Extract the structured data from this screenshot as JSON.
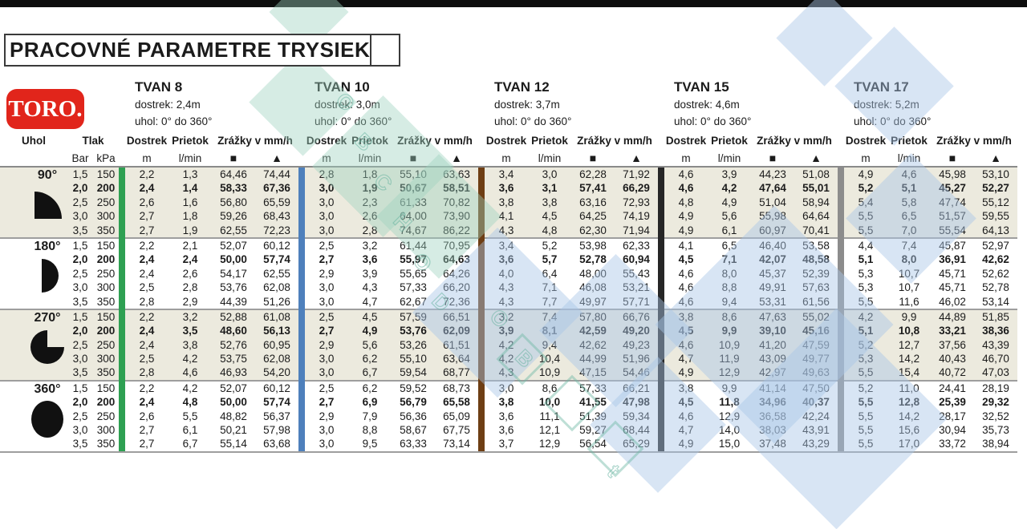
{
  "title": "PRACOVNÉ PARAMETRE TRYSIEK",
  "logo_text": "TORO.",
  "columns": {
    "uhol": "Uhol",
    "tlak": "Tlak",
    "bar": "Bar",
    "kpa": "kPa",
    "dostrek": "Dostrek",
    "prietok": "Prietok",
    "zrazky": "Zrážky v mm/h",
    "m": "m",
    "lmin": "l/min",
    "square_symbol": "■",
    "triangle_symbol": "▲"
  },
  "nozzles": [
    {
      "name": "TVAN 8",
      "dostrek": "dostrek: 2,4m",
      "uhol": "uhol: 0° do 360°",
      "color": "#2ea052"
    },
    {
      "name": "TVAN 10",
      "dostrek": "dostrek: 3,0m",
      "uhol": "uhol: 0° do 360°",
      "color": "#4e80bc"
    },
    {
      "name": "TVAN 12",
      "dostrek": "dostrek: 3,7m",
      "uhol": "uhol: 0° do 360°",
      "color": "#6e3e14"
    },
    {
      "name": "TVAN 15",
      "dostrek": "dostrek: 4,6m",
      "uhol": "uhol: 0° do 360°",
      "color": "#262626"
    },
    {
      "name": "TVAN 17",
      "dostrek": "dostrek: 5,2m",
      "uhol": "uhol: 0° do 360°",
      "color": "#8c8c8c"
    }
  ],
  "groups": [
    {
      "angle": "90°",
      "icon": "quarter-pie",
      "rows": [
        {
          "bar": "1,5",
          "kpa": "150",
          "bold": false,
          "cells": [
            [
              "2,2",
              "1,3",
              "64,46",
              "74,44"
            ],
            [
              "2,8",
              "1,8",
              "55,10",
              "63,63"
            ],
            [
              "3,4",
              "3,0",
              "62,28",
              "71,92"
            ],
            [
              "4,6",
              "3,9",
              "44,23",
              "51,08"
            ],
            [
              "4,9",
              "4,6",
              "45,98",
              "53,10"
            ]
          ]
        },
        {
          "bar": "2,0",
          "kpa": "200",
          "bold": true,
          "cells": [
            [
              "2,4",
              "1,4",
              "58,33",
              "67,36"
            ],
            [
              "3,0",
              "1,9",
              "50,67",
              "58,51"
            ],
            [
              "3,6",
              "3,1",
              "57,41",
              "66,29"
            ],
            [
              "4,6",
              "4,2",
              "47,64",
              "55,01"
            ],
            [
              "5,2",
              "5,1",
              "45,27",
              "52,27"
            ]
          ]
        },
        {
          "bar": "2,5",
          "kpa": "250",
          "bold": false,
          "cells": [
            [
              "2,6",
              "1,6",
              "56,80",
              "65,59"
            ],
            [
              "3,0",
              "2,3",
              "61,33",
              "70,82"
            ],
            [
              "3,8",
              "3,8",
              "63,16",
              "72,93"
            ],
            [
              "4,8",
              "4,9",
              "51,04",
              "58,94"
            ],
            [
              "5,4",
              "5,8",
              "47,74",
              "55,12"
            ]
          ]
        },
        {
          "bar": "3,0",
          "kpa": "300",
          "bold": false,
          "cells": [
            [
              "2,7",
              "1,8",
              "59,26",
              "68,43"
            ],
            [
              "3,0",
              "2,6",
              "64,00",
              "73,90"
            ],
            [
              "4,1",
              "4,5",
              "64,25",
              "74,19"
            ],
            [
              "4,9",
              "5,6",
              "55,98",
              "64,64"
            ],
            [
              "5,5",
              "6,5",
              "51,57",
              "59,55"
            ]
          ]
        },
        {
          "bar": "3,5",
          "kpa": "350",
          "bold": false,
          "cells": [
            [
              "2,7",
              "1,9",
              "62,55",
              "72,23"
            ],
            [
              "3,0",
              "2,8",
              "74,67",
              "86,22"
            ],
            [
              "4,3",
              "4,8",
              "62,30",
              "71,94"
            ],
            [
              "4,9",
              "6,1",
              "60,97",
              "70,41"
            ],
            [
              "5,5",
              "7,0",
              "55,54",
              "64,13"
            ]
          ]
        }
      ]
    },
    {
      "angle": "180°",
      "icon": "half-pie",
      "rows": [
        {
          "bar": "1,5",
          "kpa": "150",
          "bold": false,
          "cells": [
            [
              "2,2",
              "2,1",
              "52,07",
              "60,12"
            ],
            [
              "2,5",
              "3,2",
              "61,44",
              "70,95"
            ],
            [
              "3,4",
              "5,2",
              "53,98",
              "62,33"
            ],
            [
              "4,1",
              "6,5",
              "46,40",
              "53,58"
            ],
            [
              "4,4",
              "7,4",
              "45,87",
              "52,97"
            ]
          ]
        },
        {
          "bar": "2,0",
          "kpa": "200",
          "bold": true,
          "cells": [
            [
              "2,4",
              "2,4",
              "50,00",
              "57,74"
            ],
            [
              "2,7",
              "3,6",
              "55,97",
              "64,63"
            ],
            [
              "3,6",
              "5,7",
              "52,78",
              "60,94"
            ],
            [
              "4,5",
              "7,1",
              "42,07",
              "48,58"
            ],
            [
              "5,1",
              "8,0",
              "36,91",
              "42,62"
            ]
          ]
        },
        {
          "bar": "2,5",
          "kpa": "250",
          "bold": false,
          "cells": [
            [
              "2,4",
              "2,6",
              "54,17",
              "62,55"
            ],
            [
              "2,9",
              "3,9",
              "55,65",
              "64,26"
            ],
            [
              "4,0",
              "6,4",
              "48,00",
              "55,43"
            ],
            [
              "4,6",
              "8,0",
              "45,37",
              "52,39"
            ],
            [
              "5,3",
              "10,7",
              "45,71",
              "52,62"
            ]
          ]
        },
        {
          "bar": "3,0",
          "kpa": "300",
          "bold": false,
          "cells": [
            [
              "2,5",
              "2,8",
              "53,76",
              "62,08"
            ],
            [
              "3,0",
              "4,3",
              "57,33",
              "66,20"
            ],
            [
              "4,3",
              "7,1",
              "46,08",
              "53,21"
            ],
            [
              "4,6",
              "8,8",
              "49,91",
              "57,63"
            ],
            [
              "5,3",
              "10,7",
              "45,71",
              "52,78"
            ]
          ]
        },
        {
          "bar": "3,5",
          "kpa": "350",
          "bold": false,
          "cells": [
            [
              "2,8",
              "2,9",
              "44,39",
              "51,26"
            ],
            [
              "3,0",
              "4,7",
              "62,67",
              "72,36"
            ],
            [
              "4,3",
              "7,7",
              "49,97",
              "57,71"
            ],
            [
              "4,6",
              "9,4",
              "53,31",
              "61,56"
            ],
            [
              "5,5",
              "11,6",
              "46,02",
              "53,14"
            ]
          ]
        }
      ]
    },
    {
      "angle": "270°",
      "icon": "three-quarter-pie",
      "rows": [
        {
          "bar": "1,5",
          "kpa": "150",
          "bold": false,
          "cells": [
            [
              "2,2",
              "3,2",
              "52,88",
              "61,08"
            ],
            [
              "2,5",
              "4,5",
              "57,59",
              "66,51"
            ],
            [
              "3,2",
              "7,4",
              "57,80",
              "66,76"
            ],
            [
              "3,8",
              "8,6",
              "47,63",
              "55,02"
            ],
            [
              "4,2",
              "9,9",
              "44,89",
              "51,85"
            ]
          ]
        },
        {
          "bar": "2,0",
          "kpa": "200",
          "bold": true,
          "cells": [
            [
              "2,4",
              "3,5",
              "48,60",
              "56,13"
            ],
            [
              "2,7",
              "4,9",
              "53,76",
              "62,09"
            ],
            [
              "3,9",
              "8,1",
              "42,59",
              "49,20"
            ],
            [
              "4,5",
              "9,9",
              "39,10",
              "45,16"
            ],
            [
              "5,1",
              "10,8",
              "33,21",
              "38,36"
            ]
          ]
        },
        {
          "bar": "2,5",
          "kpa": "250",
          "bold": false,
          "cells": [
            [
              "2,4",
              "3,8",
              "52,76",
              "60,95"
            ],
            [
              "2,9",
              "5,6",
              "53,26",
              "61,51"
            ],
            [
              "4,2",
              "9,4",
              "42,62",
              "49,23"
            ],
            [
              "4,6",
              "10,9",
              "41,20",
              "47,59"
            ],
            [
              "5,2",
              "12,7",
              "37,56",
              "43,39"
            ]
          ]
        },
        {
          "bar": "3,0",
          "kpa": "300",
          "bold": false,
          "cells": [
            [
              "2,5",
              "4,2",
              "53,75",
              "62,08"
            ],
            [
              "3,0",
              "6,2",
              "55,10",
              "63,64"
            ],
            [
              "4,2",
              "10,4",
              "44,99",
              "51,96"
            ],
            [
              "4,7",
              "11,9",
              "43,09",
              "49,77"
            ],
            [
              "5,3",
              "14,2",
              "40,43",
              "46,70"
            ]
          ]
        },
        {
          "bar": "3,5",
          "kpa": "350",
          "bold": false,
          "cells": [
            [
              "2,8",
              "4,6",
              "46,93",
              "54,20"
            ],
            [
              "3,0",
              "6,7",
              "59,54",
              "68,77"
            ],
            [
              "4,3",
              "10,9",
              "47,15",
              "54,46"
            ],
            [
              "4,9",
              "12,9",
              "42,97",
              "49,63"
            ],
            [
              "5,5",
              "15,4",
              "40,72",
              "47,03"
            ]
          ]
        }
      ]
    },
    {
      "angle": "360°",
      "icon": "full-circle",
      "rows": [
        {
          "bar": "1,5",
          "kpa": "150",
          "bold": false,
          "cells": [
            [
              "2,2",
              "4,2",
              "52,07",
              "60,12"
            ],
            [
              "2,5",
              "6,2",
              "59,52",
              "68,73"
            ],
            [
              "3,0",
              "8,6",
              "57,33",
              "66,21"
            ],
            [
              "3,8",
              "9,9",
              "41,14",
              "47,50"
            ],
            [
              "5,2",
              "11,0",
              "24,41",
              "28,19"
            ]
          ]
        },
        {
          "bar": "2,0",
          "kpa": "200",
          "bold": true,
          "cells": [
            [
              "2,4",
              "4,8",
              "50,00",
              "57,74"
            ],
            [
              "2,7",
              "6,9",
              "56,79",
              "65,58"
            ],
            [
              "3,8",
              "10,0",
              "41,55",
              "47,98"
            ],
            [
              "4,5",
              "11,8",
              "34,96",
              "40,37"
            ],
            [
              "5,5",
              "12,8",
              "25,39",
              "29,32"
            ]
          ]
        },
        {
          "bar": "2,5",
          "kpa": "250",
          "bold": false,
          "cells": [
            [
              "2,6",
              "5,5",
              "48,82",
              "56,37"
            ],
            [
              "2,9",
              "7,9",
              "56,36",
              "65,09"
            ],
            [
              "3,6",
              "11,1",
              "51,39",
              "59,34"
            ],
            [
              "4,6",
              "12,9",
              "36,58",
              "42,24"
            ],
            [
              "5,5",
              "14,2",
              "28,17",
              "32,52"
            ]
          ]
        },
        {
          "bar": "3,0",
          "kpa": "300",
          "bold": false,
          "cells": [
            [
              "2,7",
              "6,1",
              "50,21",
              "57,98"
            ],
            [
              "3,0",
              "8,8",
              "58,67",
              "67,75"
            ],
            [
              "3,6",
              "12,1",
              "59,27",
              "68,44"
            ],
            [
              "4,7",
              "14,0",
              "38,03",
              "43,91"
            ],
            [
              "5,5",
              "15,6",
              "30,94",
              "35,73"
            ]
          ]
        },
        {
          "bar": "3,5",
          "kpa": "350",
          "bold": false,
          "cells": [
            [
              "2,7",
              "6,7",
              "55,14",
              "63,68"
            ],
            [
              "3,0",
              "9,5",
              "63,33",
              "73,14"
            ],
            [
              "3,7",
              "12,9",
              "56,54",
              "65,29"
            ],
            [
              "4,9",
              "15,0",
              "37,48",
              "43,29"
            ],
            [
              "5,5",
              "17,0",
              "33,72",
              "38,94"
            ]
          ]
        }
      ]
    }
  ],
  "watermark_letters": [
    "O",
    "B",
    "C",
    "H",
    "O",
    "D",
    "O",
    "B",
    "t"
  ]
}
